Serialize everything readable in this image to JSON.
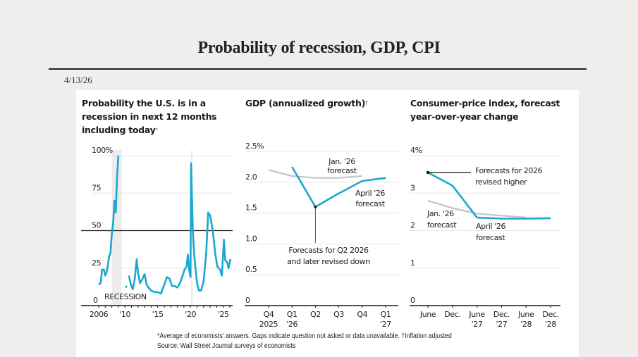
{
  "page": {
    "title": "Probability of recession, GDP, CPI",
    "date": "4/13/26"
  },
  "footnotes": {
    "line1": "*Average of economists' answers. Gaps indicate question not asked or data unavailable.   †Inflation adjusted",
    "line2": "Source: Wall Street Journal surveys of economists"
  },
  "colors": {
    "series": "#1ba8cf",
    "previous": "#c4c4c4",
    "axis": "#1a1a1a",
    "grid": "#e6e6e6",
    "recession": "#ececec"
  },
  "chart_data": [
    {
      "type": "line",
      "title_lines": [
        "Probability the U.S. is in a",
        "recession in next 12 months",
        "including today"
      ],
      "title_marker": "*",
      "ylabel": "",
      "xlabel": "",
      "ylim": [
        0,
        100
      ],
      "xlim": [
        2005.8,
        2026.3
      ],
      "yticks": [
        0,
        25,
        50,
        75,
        100
      ],
      "ytick_labels": [
        "0",
        "25",
        "50",
        "75",
        "100%"
      ],
      "xticks": [
        2006,
        2010,
        2015,
        2020,
        2025
      ],
      "xtick_labels": [
        "2006",
        "'10",
        "'15",
        "'20",
        "'25"
      ],
      "reference_line": 50,
      "recession_label": "RECESSION",
      "recession_periods": [
        [
          2008.0,
          2009.5
        ],
        [
          2020.1,
          2020.35
        ]
      ],
      "series": [
        {
          "name": "Probability",
          "segments": [
            [
              [
                2006.0,
                14
              ],
              [
                2006.3,
                15
              ],
              [
                2006.5,
                24
              ],
              [
                2006.8,
                24
              ],
              [
                2007.0,
                20
              ],
              [
                2007.2,
                22
              ],
              [
                2007.4,
                27
              ],
              [
                2007.6,
                33
              ],
              [
                2007.8,
                35
              ],
              [
                2008.0,
                48
              ],
              [
                2008.2,
                55
              ],
              [
                2008.4,
                70
              ],
              [
                2008.6,
                62
              ],
              [
                2008.8,
                85
              ],
              [
                2009.0,
                100
              ]
            ],
            [
              [
                2010.1,
                12
              ],
              [
                2010.3,
                13
              ]
            ],
            [
              [
                2010.6,
                20
              ],
              [
                2010.9,
                14
              ],
              [
                2011.2,
                11
              ],
              [
                2011.5,
                18
              ],
              [
                2011.8,
                31
              ],
              [
                2012.0,
                22
              ],
              [
                2012.3,
                15
              ],
              [
                2012.7,
                18
              ],
              [
                2013.0,
                21
              ],
              [
                2013.3,
                14
              ],
              [
                2013.6,
                12
              ],
              [
                2014.0,
                10
              ],
              [
                2014.5,
                9
              ],
              [
                2015.0,
                9
              ],
              [
                2015.5,
                8
              ],
              [
                2016.0,
                14
              ],
              [
                2016.4,
                19
              ],
              [
                2016.8,
                18
              ],
              [
                2017.2,
                13
              ],
              [
                2017.6,
                13
              ],
              [
                2018.0,
                12
              ],
              [
                2018.4,
                15
              ],
              [
                2018.8,
                20
              ],
              [
                2019.1,
                24
              ],
              [
                2019.4,
                26
              ],
              [
                2019.6,
                34
              ],
              [
                2019.8,
                24
              ],
              [
                2020.0,
                19
              ],
              [
                2020.1,
                95
              ],
              [
                2020.35,
                50
              ],
              [
                2020.6,
                32
              ],
              [
                2021.0,
                15
              ],
              [
                2021.3,
                10
              ],
              [
                2021.6,
                10
              ],
              [
                2022.0,
                16
              ],
              [
                2022.4,
                35
              ],
              [
                2022.7,
                62
              ],
              [
                2023.0,
                60
              ],
              [
                2023.4,
                50
              ],
              [
                2023.8,
                34
              ],
              [
                2024.1,
                26
              ],
              [
                2024.5,
                24
              ],
              [
                2024.8,
                20
              ],
              [
                2025.1,
                44
              ],
              [
                2025.3,
                30
              ],
              [
                2025.6,
                29
              ],
              [
                2025.8,
                25
              ],
              [
                2026.1,
                31
              ]
            ]
          ]
        }
      ]
    },
    {
      "type": "line",
      "title_lines": [
        "GDP (annualized growth)"
      ],
      "title_marker": "†",
      "ylim": [
        0,
        2.5
      ],
      "yticks": [
        0,
        0.5,
        1.0,
        1.5,
        2.0,
        2.5
      ],
      "ytick_labels": [
        "0",
        "0.5",
        "1.0",
        "1.5",
        "2.0",
        "2.5%"
      ],
      "categories": [
        "Q4 2025",
        "Q1 '26",
        "Q2",
        "Q3",
        "Q4",
        "Q1 '27"
      ],
      "category_lines": [
        [
          "Q4",
          "2025"
        ],
        [
          "Q1",
          "'26"
        ],
        [
          "Q2",
          ""
        ],
        [
          "Q3",
          ""
        ],
        [
          "Q4",
          ""
        ],
        [
          "Q1",
          "'27"
        ]
      ],
      "series": [
        {
          "name": "Jan. '26 forecast",
          "label_lines": [
            "Jan. '26",
            "forecast"
          ],
          "values": [
            2.2,
            2.1,
            2.07,
            2.07,
            2.1,
            null
          ]
        },
        {
          "name": "April '26 forecast",
          "label_lines": [
            "April '26",
            "forecast"
          ],
          "values": [
            null,
            2.25,
            1.6,
            1.82,
            2.02,
            2.07
          ]
        }
      ],
      "annotation": {
        "lines": [
          "Forecasts for Q2 2026",
          "and later revised down"
        ],
        "at_category": "Q2"
      }
    },
    {
      "type": "line",
      "title_lines": [
        "Consumer-price index, forecast",
        "year-over-year change"
      ],
      "ylim": [
        0,
        4
      ],
      "yticks": [
        0,
        1,
        2,
        3,
        4
      ],
      "ytick_labels": [
        "0",
        "1",
        "2",
        "3",
        "4%"
      ],
      "categories": [
        "June",
        "Dec.",
        "June '27",
        "Dec. '27",
        "June '28",
        "Dec. '28"
      ],
      "category_lines": [
        [
          "June",
          ""
        ],
        [
          "Dec.",
          ""
        ],
        [
          "June",
          "'27"
        ],
        [
          "Dec.",
          "'27"
        ],
        [
          "June",
          "'28"
        ],
        [
          "Dec.",
          "'28"
        ]
      ],
      "series": [
        {
          "name": "Jan. '26 forecast",
          "label_lines": [
            "Jan. '26",
            "forecast"
          ],
          "values": [
            2.8,
            2.6,
            2.45,
            2.4,
            2.35,
            null
          ]
        },
        {
          "name": "April '26 forecast",
          "label_lines": [
            "April '26",
            "forecast"
          ],
          "values": [
            3.55,
            3.2,
            2.35,
            2.32,
            2.32,
            2.33
          ]
        }
      ],
      "annotation": {
        "lines": [
          "Forecasts for 2026",
          "revised higher"
        ],
        "at_category": "June"
      }
    }
  ]
}
